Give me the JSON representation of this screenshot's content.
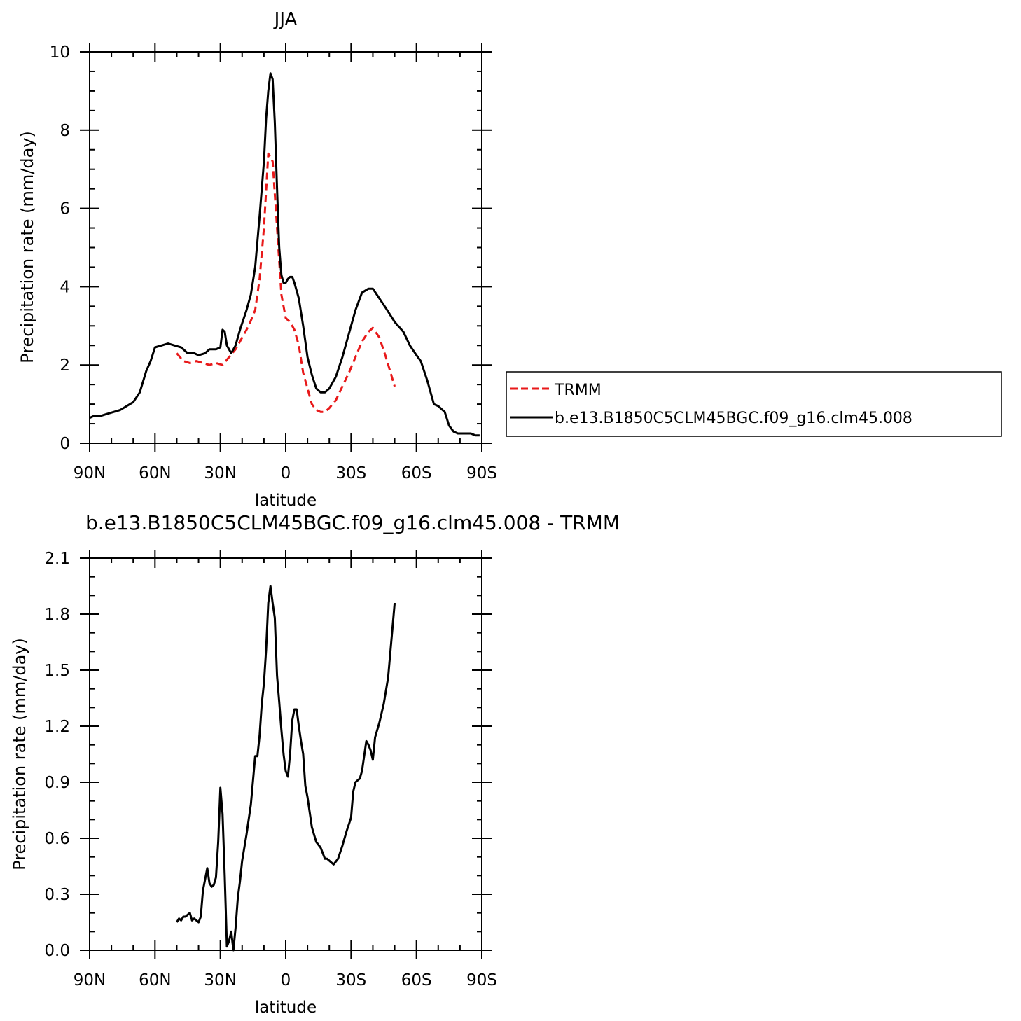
{
  "chart_data": [
    {
      "type": "line",
      "title": "JJA",
      "xlabel": "latitude",
      "ylabel": "Precipitation rate (mm/day)",
      "xlim": [
        90,
        -90
      ],
      "ylim": [
        0,
        10
      ],
      "xticks": [
        90,
        60,
        30,
        0,
        -30,
        -60,
        -90
      ],
      "xtick_labels": [
        "90N",
        "60N",
        "30N",
        "0",
        "30S",
        "60S",
        "90S"
      ],
      "yticks": [
        0,
        2,
        4,
        6,
        8,
        10
      ],
      "ytick_labels": [
        "0",
        "2",
        "4",
        "6",
        "8",
        "10"
      ],
      "legend_position": "right",
      "series": [
        {
          "name": "TRMM",
          "color": "#e8191a",
          "dash": "dashed",
          "x": [
            50,
            47,
            44,
            41,
            38,
            35,
            32,
            29,
            26,
            23,
            20,
            17,
            14,
            12,
            10,
            8,
            6,
            4,
            2,
            0,
            -2,
            -4,
            -6,
            -8,
            -10,
            -12,
            -14,
            -16,
            -18,
            -20,
            -23,
            -26,
            -29,
            -32,
            -35,
            -38,
            -40,
            -43,
            -46,
            -50
          ],
          "y": [
            2.3,
            2.1,
            2.05,
            2.1,
            2.05,
            2.0,
            2.05,
            2.0,
            2.2,
            2.4,
            2.7,
            3.0,
            3.4,
            4.2,
            5.5,
            7.4,
            7.2,
            5.5,
            3.8,
            3.2,
            3.1,
            2.9,
            2.5,
            1.8,
            1.4,
            1.0,
            0.85,
            0.8,
            0.8,
            0.9,
            1.1,
            1.45,
            1.8,
            2.2,
            2.6,
            2.85,
            2.95,
            2.7,
            2.2,
            1.45
          ]
        },
        {
          "name": "b.e13.B1850C5CLM45BGC.f09_g16.clm45.008",
          "color": "#000000",
          "dash": "solid",
          "x": [
            90,
            88,
            85,
            82,
            79,
            76,
            73,
            70,
            67,
            64,
            62,
            60,
            57,
            54,
            51,
            48,
            45,
            42,
            40,
            37,
            35,
            32,
            30,
            29,
            28,
            27,
            25,
            23,
            21,
            18,
            16,
            14,
            12,
            10,
            9,
            8,
            7,
            6,
            5,
            4,
            3,
            2,
            1,
            0,
            -1,
            -2,
            -3,
            -4,
            -6,
            -8,
            -10,
            -12,
            -14,
            -16,
            -18,
            -20,
            -23,
            -26,
            -29,
            -32,
            -35,
            -38,
            -40,
            -43,
            -46,
            -50,
            -54,
            -57,
            -60,
            -62,
            -65,
            -68,
            -70,
            -73,
            -75,
            -77,
            -79,
            -81,
            -83,
            -85,
            -87,
            -89
          ],
          "y": [
            0.65,
            0.7,
            0.7,
            0.75,
            0.8,
            0.85,
            0.95,
            1.05,
            1.3,
            1.85,
            2.1,
            2.45,
            2.5,
            2.55,
            2.5,
            2.45,
            2.3,
            2.3,
            2.25,
            2.3,
            2.4,
            2.4,
            2.45,
            2.9,
            2.85,
            2.5,
            2.3,
            2.5,
            2.9,
            3.4,
            3.8,
            4.5,
            5.8,
            7.2,
            8.3,
            9.0,
            9.45,
            9.3,
            8.2,
            6.5,
            5.0,
            4.3,
            4.1,
            4.1,
            4.2,
            4.25,
            4.25,
            4.1,
            3.7,
            3.0,
            2.2,
            1.75,
            1.4,
            1.3,
            1.3,
            1.4,
            1.7,
            2.2,
            2.8,
            3.4,
            3.85,
            3.95,
            3.95,
            3.7,
            3.45,
            3.1,
            2.85,
            2.5,
            2.25,
            2.1,
            1.6,
            1.0,
            0.95,
            0.8,
            0.45,
            0.3,
            0.25,
            0.25,
            0.25,
            0.25,
            0.2,
            0.2
          ]
        }
      ]
    },
    {
      "type": "line",
      "title": "b.e13.B1850C5CLM45BGC.f09_g16.clm45.008 - TRMM",
      "xlabel": "latitude",
      "ylabel": "Precipitation rate (mm/day)",
      "xlim": [
        90,
        -90
      ],
      "ylim": [
        0.0,
        2.1
      ],
      "xticks": [
        90,
        60,
        30,
        0,
        -30,
        -60,
        -90
      ],
      "xtick_labels": [
        "90N",
        "60N",
        "30N",
        "0",
        "30S",
        "60S",
        "90S"
      ],
      "yticks": [
        0.0,
        0.3,
        0.6,
        0.9,
        1.2,
        1.5,
        1.8,
        2.1
      ],
      "ytick_labels": [
        "0.0",
        "0.3",
        "0.6",
        "0.9",
        "1.2",
        "1.5",
        "1.8",
        "2.1"
      ],
      "series": [
        {
          "color": "#000000",
          "dash": "solid",
          "x": [
            50,
            49,
            48,
            47,
            46,
            45,
            44,
            43,
            42,
            41,
            40,
            39,
            38,
            37,
            36,
            35,
            34,
            33,
            32,
            31,
            30,
            29,
            28,
            27,
            26,
            25,
            24,
            23,
            22,
            21,
            20,
            18,
            16,
            14,
            13,
            12,
            11,
            10,
            9,
            8,
            7,
            6,
            5,
            4,
            3,
            2,
            1,
            0,
            -1,
            -2,
            -3,
            -4,
            -5,
            -6,
            -7,
            -8,
            -9,
            -10,
            -12,
            -13,
            -14,
            -16,
            -17,
            -18,
            -19,
            -20,
            -21,
            -22,
            -24,
            -26,
            -28,
            -30,
            -31,
            -32,
            -33,
            -34,
            -35,
            -36,
            -37,
            -38,
            -39,
            -40,
            -41,
            -43,
            -45,
            -47,
            -50
          ],
          "y": [
            0.15,
            0.17,
            0.16,
            0.18,
            0.18,
            0.19,
            0.2,
            0.16,
            0.17,
            0.16,
            0.15,
            0.18,
            0.32,
            0.38,
            0.44,
            0.36,
            0.34,
            0.35,
            0.39,
            0.58,
            0.87,
            0.73,
            0.4,
            0.02,
            0.05,
            0.1,
            0.0,
            0.12,
            0.28,
            0.37,
            0.48,
            0.62,
            0.78,
            1.04,
            1.04,
            1.15,
            1.32,
            1.43,
            1.61,
            1.86,
            1.95,
            1.86,
            1.78,
            1.47,
            1.33,
            1.18,
            1.05,
            0.96,
            0.93,
            1.05,
            1.23,
            1.29,
            1.29,
            1.2,
            1.12,
            1.05,
            0.88,
            0.82,
            0.66,
            0.62,
            0.58,
            0.55,
            0.52,
            0.49,
            0.49,
            0.48,
            0.47,
            0.46,
            0.49,
            0.56,
            0.64,
            0.71,
            0.85,
            0.9,
            0.91,
            0.92,
            0.96,
            1.04,
            1.12,
            1.1,
            1.07,
            1.02,
            1.14,
            1.22,
            1.32,
            1.46,
            1.86
          ]
        }
      ]
    }
  ]
}
